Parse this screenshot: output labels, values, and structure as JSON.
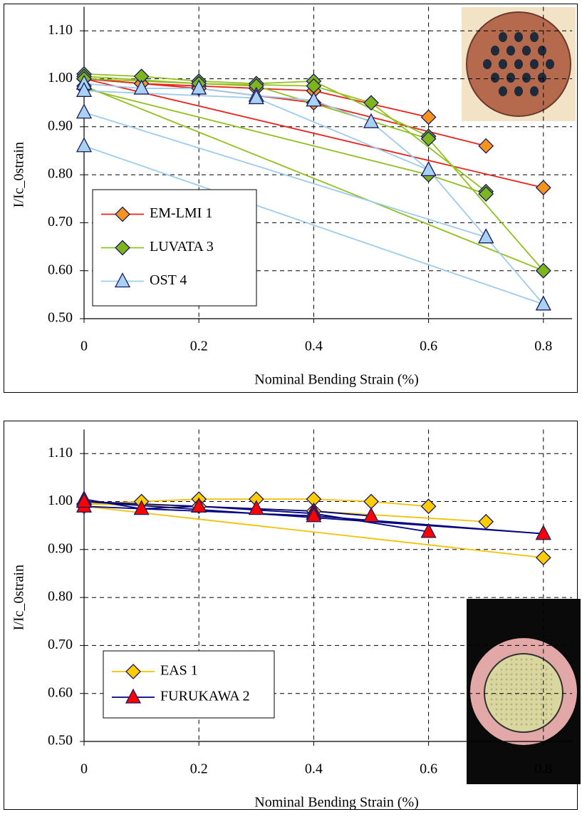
{
  "chart_data": [
    {
      "type": "line",
      "x_label": "Nominal Bending Strain (%)",
      "y_label": "I/Ic_0strain",
      "xlim": [
        0,
        0.85
      ],
      "ylim": [
        0.5,
        1.15
      ],
      "xticks": [
        0,
        0.2,
        0.4,
        0.6,
        0.8
      ],
      "yticks": [
        {
          "value": 0.5,
          "label": "0.50"
        },
        {
          "value": 0.6,
          "label": "0.60"
        },
        {
          "value": 0.7,
          "label": "0.70"
        },
        {
          "value": 0.8,
          "label": "0.80"
        },
        {
          "value": 0.9,
          "label": "0.90"
        },
        {
          "value": 1.0,
          "label": "1.00"
        },
        {
          "value": 1.1,
          "label": "1.10"
        }
      ],
      "grid": true,
      "legend": "lower left",
      "series": [
        {
          "name": "EM-LMI 1",
          "color": "#e8231c",
          "marker": "diamond",
          "marker_color": "#f7941d",
          "lines": [
            {
              "x": [
                0,
                0.1,
                0.2,
                0.3,
                0.4,
                0.6
              ],
              "values": [
                1.0,
                0.99,
                0.985,
                0.98,
                0.975,
                0.92
              ]
            },
            {
              "x": [
                0,
                0.2,
                0.4,
                0.7
              ],
              "values": [
                1.0,
                0.98,
                0.95,
                0.86
              ]
            },
            {
              "x": [
                0,
                0.8
              ],
              "values": [
                1.0,
                0.773
              ]
            }
          ]
        },
        {
          "name": "LUVATA 3",
          "color": "#92c020",
          "marker": "diamond",
          "marker_color": "#7db51c",
          "lines": [
            {
              "x": [
                0,
                0.1,
                0.2,
                0.3,
                0.4,
                0.6
              ],
              "values": [
                1.01,
                1.005,
                0.995,
                0.99,
                0.995,
                0.88
              ]
            },
            {
              "x": [
                0,
                0.2,
                0.4,
                0.5,
                0.7
              ],
              "values": [
                1.005,
                0.99,
                0.985,
                0.95,
                0.765
              ]
            },
            {
              "x": [
                0,
                0.3,
                0.6,
                0.8
              ],
              "values": [
                1.0,
                0.985,
                0.875,
                0.6
              ]
            },
            {
              "x": [
                0,
                0.6,
                0.7
              ],
              "values": [
                0.98,
                0.8,
                0.76
              ]
            },
            {
              "x": [
                0,
                0.8
              ],
              "values": [
                0.985,
                0.6
              ]
            }
          ]
        },
        {
          "name": "OST 4",
          "color": "#9dcbec",
          "marker": "triangle",
          "marker_color": "#a9d2f2",
          "lines": [
            {
              "x": [
                0,
                0.1,
                0.2,
                0.3,
                0.4,
                0.5,
                0.6
              ],
              "values": [
                0.99,
                0.98,
                0.98,
                0.965,
                0.955,
                0.91,
                0.81
              ]
            },
            {
              "x": [
                0,
                0.3,
                0.6,
                0.7,
                0.8
              ],
              "values": [
                0.975,
                0.96,
                0.81,
                0.67,
                0.53
              ]
            },
            {
              "x": [
                0,
                0.7
              ],
              "values": [
                0.93,
                0.67
              ]
            },
            {
              "x": [
                0,
                0.8
              ],
              "values": [
                0.86,
                0.53
              ]
            }
          ]
        }
      ]
    },
    {
      "type": "line",
      "x_label": "Nominal Bending Strain (%)",
      "y_label": "I/Ic_0strain",
      "xlim": [
        0,
        0.85
      ],
      "ylim": [
        0.5,
        1.15
      ],
      "xticks": [
        0,
        0.2,
        0.4,
        0.6,
        0.8
      ],
      "yticks": [
        {
          "value": 0.5,
          "label": "0.50"
        },
        {
          "value": 0.6,
          "label": "0.60"
        },
        {
          "value": 0.7,
          "label": "0.70"
        },
        {
          "value": 0.8,
          "label": "0.80"
        },
        {
          "value": 0.9,
          "label": "0.90"
        },
        {
          "value": 1.0,
          "label": "1.00"
        },
        {
          "value": 1.1,
          "label": "1.10"
        }
      ],
      "grid": true,
      "legend": "lower left",
      "series": [
        {
          "name": "EAS 1",
          "color": "#f2c200",
          "marker": "diamond",
          "marker_color": "#ffcc00",
          "lines": [
            {
              "x": [
                0,
                0.1,
                0.2,
                0.3,
                0.4,
                0.5,
                0.6
              ],
              "values": [
                0.995,
                1.0,
                1.005,
                1.005,
                1.005,
                1.0,
                0.99
              ]
            },
            {
              "x": [
                0,
                0.2,
                0.4,
                0.7
              ],
              "values": [
                0.995,
                0.99,
                0.98,
                0.958
              ]
            },
            {
              "x": [
                0,
                0.8
              ],
              "values": [
                0.99,
                0.883
              ]
            }
          ]
        },
        {
          "name": "FURUKAWA 2",
          "color": "#000080",
          "marker": "triangle",
          "marker_color": "#ff0000",
          "lines": [
            {
              "x": [
                0,
                0.1,
                0.2,
                0.3,
                0.4,
                0.5
              ],
              "values": [
                1.005,
                0.985,
                0.99,
                0.985,
                0.98,
                0.97
              ]
            },
            {
              "x": [
                0,
                0.2,
                0.4,
                0.6
              ],
              "values": [
                1.0,
                0.99,
                0.975,
                0.937
              ]
            },
            {
              "x": [
                0,
                0.4,
                0.8
              ],
              "values": [
                0.99,
                0.97,
                0.933
              ]
            },
            {
              "x": [
                0,
                0.8
              ],
              "values": [
                1.0,
                0.933
              ]
            }
          ]
        }
      ]
    }
  ]
}
